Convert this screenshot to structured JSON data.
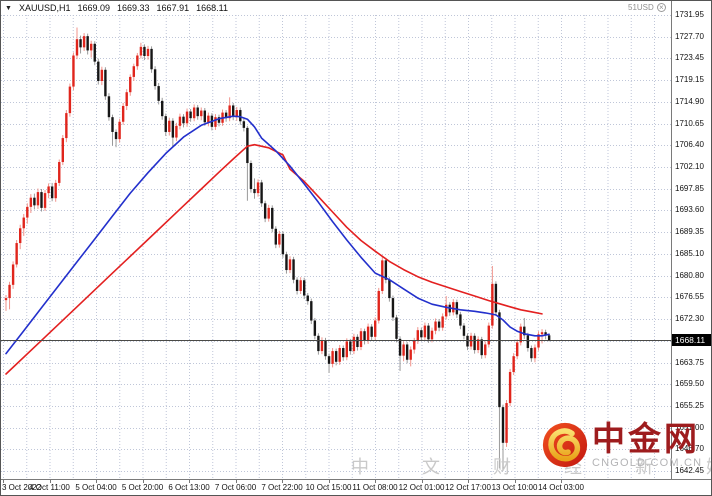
{
  "header": {
    "dropdown_glyph": "▼",
    "symbol": "XAUUSD,H1",
    "open": "1669.09",
    "high": "1669.33",
    "low": "1667.91",
    "close": "1668.11"
  },
  "top_right": {
    "label": "51USD",
    "close_glyph": "×"
  },
  "price_tag": "1668.11",
  "watermark": {
    "strip_text": "中 文 财 经 新 媒 体",
    "brand": "中金网",
    "domain": "CNGOLD.COM.CN"
  },
  "colors": {
    "bull_body": "#e0251c",
    "bull_wick": "#f0938b",
    "bear_body": "#161616",
    "bear_wick": "#9a9a9a",
    "ma_fast": "#2330cc",
    "ma_slow": "#e32020",
    "grid": "#bfc6d8",
    "bid_line": "#4a4a46",
    "tag_bg": "#000000",
    "brand_red": "#9e1c1e"
  },
  "chart_data": {
    "type": "candlestick",
    "symbol": "XAUUSD",
    "timeframe": "H1",
    "title": "XAUUSD,H1 1669.09 1669.33 1667.91 1668.11",
    "ylim": [
      1640.9,
      1731.95
    ],
    "grid": true,
    "bid_price": 1668.11,
    "y_axis_labels": [
      "1731.95",
      "1727.70",
      "1723.45",
      "1719.15",
      "1714.90",
      "1710.65",
      "1706.40",
      "1702.10",
      "1697.85",
      "1693.60",
      "1689.35",
      "1685.10",
      "1680.80",
      "1676.55",
      "1672.30",
      "1663.75",
      "1659.50",
      "1655.25",
      "1651.00",
      "1646.70",
      "1642.45"
    ],
    "grid_prices": [
      1731.95,
      1727.7,
      1723.45,
      1719.15,
      1714.9,
      1710.65,
      1706.4,
      1702.1,
      1697.85,
      1693.6,
      1689.35,
      1685.1,
      1680.8,
      1676.55,
      1672.3,
      1668.0,
      1663.75,
      1659.5,
      1655.25,
      1651.0,
      1646.7,
      1642.45
    ],
    "x_axis_labels": [
      "3 Oct 2022",
      "4 Oct 11:00",
      "5 Oct 04:00",
      "5 Oct 20:00",
      "6 Oct 13:00",
      "7 Oct 06:00",
      "7 Oct 22:00",
      "10 Oct 15:00",
      "11 Oct 08:00",
      "12 Oct 01:00",
      "12 Oct 17:00",
      "13 Oct 10:00",
      "14 Oct 03:00"
    ],
    "candles": [
      [
        1676.0,
        1677.0,
        1673.9,
        1676.4
      ],
      [
        1676.4,
        1679.6,
        1674.2,
        1679.0
      ],
      [
        1679.0,
        1683.6,
        1678.2,
        1683.0
      ],
      [
        1683.0,
        1687.8,
        1682.4,
        1687.2
      ],
      [
        1687.2,
        1690.8,
        1686.0,
        1690.1
      ],
      [
        1690.1,
        1692.9,
        1688.6,
        1692.2
      ],
      [
        1692.2,
        1695.0,
        1691.0,
        1694.3
      ],
      [
        1694.3,
        1696.8,
        1693.1,
        1696.1
      ],
      [
        1696.1,
        1696.9,
        1693.8,
        1694.6
      ],
      [
        1694.6,
        1697.9,
        1693.9,
        1697.2
      ],
      [
        1697.2,
        1697.8,
        1693.4,
        1694.1
      ],
      [
        1694.1,
        1697.6,
        1693.5,
        1697.0
      ],
      [
        1697.0,
        1698.9,
        1696.0,
        1698.3
      ],
      [
        1698.3,
        1699.0,
        1695.4,
        1696.0
      ],
      [
        1696.0,
        1699.6,
        1695.3,
        1699.0
      ],
      [
        1699.0,
        1703.6,
        1698.4,
        1703.1
      ],
      [
        1703.1,
        1708.4,
        1702.5,
        1707.8
      ],
      [
        1707.8,
        1713.3,
        1707.0,
        1712.7
      ],
      [
        1712.7,
        1718.5,
        1712.0,
        1717.9
      ],
      [
        1717.9,
        1724.6,
        1717.2,
        1724.0
      ],
      [
        1724.0,
        1729.5,
        1723.3,
        1727.2
      ],
      [
        1727.2,
        1727.9,
        1724.4,
        1725.6
      ],
      [
        1725.6,
        1728.4,
        1724.9,
        1727.8
      ],
      [
        1727.8,
        1728.3,
        1724.2,
        1725.0
      ],
      [
        1725.0,
        1726.9,
        1723.6,
        1726.3
      ],
      [
        1726.3,
        1726.8,
        1722.1,
        1722.8
      ],
      [
        1722.8,
        1723.4,
        1718.3,
        1719.0
      ],
      [
        1719.0,
        1721.8,
        1718.2,
        1721.2
      ],
      [
        1721.2,
        1721.7,
        1715.3,
        1716.0
      ],
      [
        1716.0,
        1716.6,
        1711.2,
        1711.9
      ],
      [
        1711.9,
        1712.4,
        1706.3,
        1709.0
      ],
      [
        1709.0,
        1709.5,
        1706.0,
        1707.6
      ],
      [
        1707.6,
        1711.6,
        1706.9,
        1711.0
      ],
      [
        1711.0,
        1714.7,
        1710.4,
        1714.1
      ],
      [
        1714.1,
        1717.4,
        1713.3,
        1716.8
      ],
      [
        1716.8,
        1720.3,
        1716.1,
        1719.8
      ],
      [
        1719.8,
        1722.4,
        1719.0,
        1721.9
      ],
      [
        1721.9,
        1724.5,
        1721.2,
        1724.0
      ],
      [
        1724.0,
        1726.5,
        1723.4,
        1725.7
      ],
      [
        1725.7,
        1726.2,
        1723.1,
        1723.9
      ],
      [
        1723.9,
        1725.9,
        1723.2,
        1725.3
      ],
      [
        1725.3,
        1725.8,
        1720.6,
        1721.3
      ],
      [
        1721.3,
        1721.9,
        1717.3,
        1718.0
      ],
      [
        1718.0,
        1718.6,
        1714.4,
        1715.1
      ],
      [
        1715.1,
        1715.7,
        1711.4,
        1712.1
      ],
      [
        1712.1,
        1712.6,
        1708.2,
        1709.0
      ],
      [
        1709.0,
        1711.8,
        1708.3,
        1711.2
      ],
      [
        1711.2,
        1711.7,
        1706.1,
        1707.9
      ],
      [
        1707.9,
        1710.8,
        1707.2,
        1710.2
      ],
      [
        1710.2,
        1712.6,
        1709.5,
        1712.0
      ],
      [
        1712.0,
        1712.5,
        1709.9,
        1710.7
      ],
      [
        1710.7,
        1713.6,
        1710.0,
        1713.0
      ],
      [
        1713.0,
        1713.5,
        1711.0,
        1711.7
      ],
      [
        1711.7,
        1714.4,
        1711.1,
        1713.8
      ],
      [
        1713.8,
        1714.3,
        1711.4,
        1712.1
      ],
      [
        1712.1,
        1713.8,
        1711.3,
        1713.2
      ],
      [
        1713.2,
        1713.7,
        1710.2,
        1710.9
      ],
      [
        1710.9,
        1712.8,
        1710.1,
        1712.2
      ],
      [
        1712.2,
        1712.7,
        1709.3,
        1710.0
      ],
      [
        1710.0,
        1712.5,
        1709.4,
        1711.9
      ],
      [
        1711.9,
        1712.4,
        1710.1,
        1710.8
      ],
      [
        1710.8,
        1713.4,
        1710.2,
        1712.8
      ],
      [
        1712.8,
        1713.3,
        1711.0,
        1711.7
      ],
      [
        1711.7,
        1715.8,
        1711.1,
        1714.2
      ],
      [
        1714.2,
        1714.7,
        1711.3,
        1712.0
      ],
      [
        1712.0,
        1713.9,
        1711.2,
        1713.3
      ],
      [
        1713.3,
        1713.8,
        1710.4,
        1711.1
      ],
      [
        1711.1,
        1711.6,
        1709.1,
        1709.8
      ],
      [
        1709.8,
        1710.2,
        1695.5,
        1702.9
      ],
      [
        1702.9,
        1703.4,
        1697.1,
        1697.8
      ],
      [
        1697.8,
        1699.9,
        1695.9,
        1697.0
      ],
      [
        1697.0,
        1699.7,
        1696.3,
        1699.1
      ],
      [
        1699.1,
        1699.6,
        1694.3,
        1695.0
      ],
      [
        1695.0,
        1695.5,
        1691.3,
        1692.0
      ],
      [
        1692.0,
        1694.7,
        1691.4,
        1694.1
      ],
      [
        1694.1,
        1694.6,
        1689.3,
        1690.0
      ],
      [
        1690.0,
        1690.5,
        1686.2,
        1686.9
      ],
      [
        1686.9,
        1689.6,
        1686.3,
        1689.0
      ],
      [
        1689.0,
        1689.5,
        1684.3,
        1685.0
      ],
      [
        1685.0,
        1685.5,
        1681.2,
        1681.9
      ],
      [
        1681.9,
        1684.6,
        1681.3,
        1684.0
      ],
      [
        1684.0,
        1684.5,
        1679.3,
        1680.0
      ],
      [
        1680.0,
        1680.5,
        1677.1,
        1677.8
      ],
      [
        1677.8,
        1680.5,
        1677.2,
        1679.9
      ],
      [
        1679.9,
        1680.4,
        1676.2,
        1676.9
      ],
      [
        1676.9,
        1677.4,
        1675.1,
        1675.8
      ],
      [
        1675.8,
        1676.3,
        1671.3,
        1672.0
      ],
      [
        1672.0,
        1672.5,
        1668.3,
        1669.0
      ],
      [
        1669.0,
        1669.5,
        1665.3,
        1666.0
      ],
      [
        1666.0,
        1668.7,
        1665.4,
        1668.1
      ],
      [
        1668.1,
        1668.6,
        1664.3,
        1665.0
      ],
      [
        1665.0,
        1665.5,
        1661.7,
        1663.5
      ],
      [
        1663.5,
        1666.6,
        1662.8,
        1666.0
      ],
      [
        1666.0,
        1666.5,
        1663.2,
        1663.9
      ],
      [
        1663.9,
        1667.2,
        1663.3,
        1666.6
      ],
      [
        1666.6,
        1667.1,
        1664.1,
        1664.8
      ],
      [
        1664.8,
        1668.5,
        1664.2,
        1667.9
      ],
      [
        1667.9,
        1668.4,
        1665.3,
        1666.0
      ],
      [
        1666.0,
        1669.4,
        1665.4,
        1668.8
      ],
      [
        1668.8,
        1669.3,
        1666.1,
        1666.8
      ],
      [
        1666.8,
        1670.5,
        1666.2,
        1669.9
      ],
      [
        1669.9,
        1670.4,
        1667.3,
        1668.0
      ],
      [
        1668.0,
        1671.4,
        1667.4,
        1670.8
      ],
      [
        1670.8,
        1671.3,
        1668.1,
        1668.8
      ],
      [
        1668.8,
        1672.6,
        1668.2,
        1672.0
      ],
      [
        1672.0,
        1678.4,
        1671.4,
        1677.8
      ],
      [
        1677.8,
        1684.6,
        1677.2,
        1683.8
      ],
      [
        1683.8,
        1684.3,
        1679.3,
        1680.0
      ],
      [
        1680.0,
        1680.5,
        1675.7,
        1676.4
      ],
      [
        1676.4,
        1676.9,
        1671.9,
        1672.6
      ],
      [
        1672.6,
        1673.1,
        1667.7,
        1668.4
      ],
      [
        1668.4,
        1668.9,
        1662.1,
        1665.1
      ],
      [
        1665.1,
        1667.9,
        1664.0,
        1667.3
      ],
      [
        1667.3,
        1667.8,
        1663.6,
        1664.3
      ],
      [
        1664.3,
        1666.9,
        1663.0,
        1666.3
      ],
      [
        1666.3,
        1668.6,
        1665.5,
        1668.0
      ],
      [
        1668.0,
        1670.7,
        1667.4,
        1670.1
      ],
      [
        1670.1,
        1670.6,
        1668.0,
        1668.7
      ],
      [
        1668.7,
        1671.6,
        1668.1,
        1671.0
      ],
      [
        1671.0,
        1671.5,
        1667.6,
        1668.3
      ],
      [
        1668.3,
        1670.6,
        1667.7,
        1670.0
      ],
      [
        1670.0,
        1672.4,
        1669.3,
        1671.8
      ],
      [
        1671.8,
        1672.3,
        1669.9,
        1670.6
      ],
      [
        1670.6,
        1673.4,
        1670.0,
        1672.8
      ],
      [
        1672.8,
        1676.8,
        1672.2,
        1675.1
      ],
      [
        1675.1,
        1675.6,
        1672.9,
        1673.6
      ],
      [
        1673.6,
        1676.2,
        1673.0,
        1675.6
      ],
      [
        1675.6,
        1676.1,
        1672.5,
        1673.2
      ],
      [
        1673.2,
        1673.7,
        1670.3,
        1671.0
      ],
      [
        1671.0,
        1671.5,
        1668.3,
        1669.0
      ],
      [
        1669.0,
        1669.5,
        1666.2,
        1666.9
      ],
      [
        1666.9,
        1669.6,
        1666.3,
        1669.0
      ],
      [
        1669.0,
        1669.5,
        1665.5,
        1666.2
      ],
      [
        1666.2,
        1668.9,
        1665.6,
        1668.3
      ],
      [
        1668.3,
        1668.8,
        1664.5,
        1665.2
      ],
      [
        1665.2,
        1667.9,
        1664.6,
        1667.3
      ],
      [
        1667.3,
        1671.6,
        1666.7,
        1671.0
      ],
      [
        1671.0,
        1682.7,
        1670.4,
        1679.2
      ],
      [
        1679.2,
        1679.7,
        1672.9,
        1673.6
      ],
      [
        1673.6,
        1674.1,
        1643.0,
        1655.0
      ],
      [
        1655.0,
        1655.5,
        1642.5,
        1648.0
      ],
      [
        1648.0,
        1656.4,
        1647.2,
        1655.8
      ],
      [
        1655.8,
        1662.5,
        1655.2,
        1661.9
      ],
      [
        1661.9,
        1665.6,
        1661.3,
        1665.0
      ],
      [
        1665.0,
        1668.3,
        1664.4,
        1667.7
      ],
      [
        1667.7,
        1671.4,
        1667.1,
        1670.8
      ],
      [
        1670.8,
        1672.5,
        1668.4,
        1669.1
      ],
      [
        1669.1,
        1669.6,
        1665.9,
        1666.6
      ],
      [
        1666.6,
        1667.1,
        1663.9,
        1664.6
      ],
      [
        1664.6,
        1667.3,
        1663.8,
        1666.7
      ],
      [
        1666.7,
        1669.9,
        1666.1,
        1669.3
      ],
      [
        1669.3,
        1670.3,
        1667.5,
        1669.7
      ],
      [
        1669.7,
        1670.2,
        1668.3,
        1669.1
      ],
      [
        1669.09,
        1669.33,
        1667.91,
        1668.11
      ]
    ],
    "series": [
      {
        "name": "ma-fast-blue",
        "color": "#2330cc",
        "points": [
          [
            0,
            1665.5
          ],
          [
            5,
            1670.0
          ],
          [
            10,
            1674.5
          ],
          [
            15,
            1679.0
          ],
          [
            20,
            1683.5
          ],
          [
            25,
            1688.0
          ],
          [
            30,
            1692.5
          ],
          [
            35,
            1697.0
          ],
          [
            40,
            1701.0
          ],
          [
            45,
            1704.8
          ],
          [
            50,
            1708.0
          ],
          [
            55,
            1710.3
          ],
          [
            60,
            1711.6
          ],
          [
            64,
            1712.1
          ],
          [
            66,
            1712.0
          ],
          [
            68,
            1711.5
          ],
          [
            70,
            1710.0
          ],
          [
            72,
            1707.8
          ],
          [
            76,
            1705.3
          ],
          [
            80,
            1702.3
          ],
          [
            84,
            1698.8
          ],
          [
            88,
            1695.2
          ],
          [
            92,
            1691.4
          ],
          [
            96,
            1687.8
          ],
          [
            100,
            1684.4
          ],
          [
            104,
            1681.3
          ],
          [
            108,
            1680.0
          ],
          [
            112,
            1678.2
          ],
          [
            116,
            1676.4
          ],
          [
            120,
            1675.2
          ],
          [
            124,
            1674.6
          ],
          [
            128,
            1674.1
          ],
          [
            132,
            1673.8
          ],
          [
            135,
            1673.5
          ],
          [
            138,
            1673.1
          ],
          [
            140,
            1672.1
          ],
          [
            142,
            1670.7
          ],
          [
            144,
            1669.9
          ],
          [
            146,
            1669.4
          ],
          [
            149,
            1669.0
          ],
          [
            151,
            1669.0
          ],
          [
            153,
            1669.3
          ]
        ]
      },
      {
        "name": "ma-slow-red",
        "color": "#e32020",
        "points": [
          [
            0,
            1661.5
          ],
          [
            10,
            1668.1
          ],
          [
            20,
            1674.7
          ],
          [
            30,
            1681.3
          ],
          [
            40,
            1687.9
          ],
          [
            50,
            1694.5
          ],
          [
            55,
            1697.8
          ],
          [
            60,
            1701.1
          ],
          [
            64,
            1703.7
          ],
          [
            68,
            1706.2
          ],
          [
            70,
            1706.5
          ],
          [
            74,
            1705.9
          ],
          [
            78,
            1704.5
          ],
          [
            80,
            1701.7
          ],
          [
            84,
            1699.3
          ],
          [
            88,
            1696.3
          ],
          [
            92,
            1693.3
          ],
          [
            96,
            1690.3
          ],
          [
            100,
            1687.7
          ],
          [
            104,
            1685.6
          ],
          [
            108,
            1683.6
          ],
          [
            112,
            1682.0
          ],
          [
            116,
            1680.6
          ],
          [
            120,
            1679.5
          ],
          [
            124,
            1678.6
          ],
          [
            128,
            1677.7
          ],
          [
            132,
            1676.8
          ],
          [
            136,
            1675.9
          ],
          [
            139,
            1675.3
          ],
          [
            142,
            1674.7
          ],
          [
            145,
            1674.1
          ],
          [
            148,
            1673.7
          ],
          [
            151,
            1673.3
          ]
        ]
      }
    ]
  }
}
